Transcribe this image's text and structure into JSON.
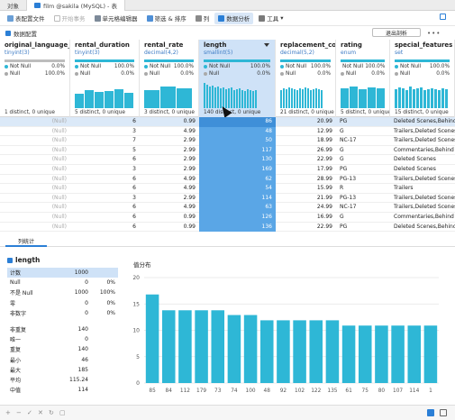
{
  "tabs": [
    {
      "label": "对象"
    },
    {
      "label": "film @sakila (MySQL) - 表"
    }
  ],
  "toolbar": {
    "items": [
      {
        "label": "表配置文件",
        "icon": "table-profile-icon"
      },
      {
        "label": "开始事务",
        "icon": "transaction-icon"
      },
      {
        "label": "单元格编辑器",
        "icon": "cell-editor-icon"
      },
      {
        "label": "筛选 & 排序",
        "icon": "filter-icon"
      },
      {
        "label": "列",
        "icon": "columns-icon"
      },
      {
        "label": "数据分析",
        "icon": "data-analysis-icon"
      },
      {
        "label": "工具",
        "icon": "tools-icon"
      }
    ]
  },
  "subbar": {
    "label": "数据配置",
    "exit_button": "退出剖析"
  },
  "columns": [
    {
      "name": "original_language_id",
      "type": "tinyint(3)",
      "not_null": "Not Null",
      "not_null_pct": "0.0%",
      "null": "Null",
      "null_pct": "100.0%",
      "distinct": "1 distinct, 0 unique"
    },
    {
      "name": "rental_duration",
      "type": "tinyint(3)",
      "not_null": "Not Null",
      "not_null_pct": "100.0%",
      "null": "Null",
      "null_pct": "0.0%",
      "distinct": "5 distinct, 0 unique"
    },
    {
      "name": "rental_rate",
      "type": "decimal(4,2)",
      "not_null": "Not Null",
      "not_null_pct": "100.0%",
      "null": "Null",
      "null_pct": "0.0%",
      "distinct": "3 distinct, 0 unique"
    },
    {
      "name": "length",
      "type": "smallint(5)",
      "not_null": "Not Null",
      "not_null_pct": "100.0%",
      "null": "Null",
      "null_pct": "0.0%",
      "distinct": "140 distinct, 0 unique"
    },
    {
      "name": "replacement_cost",
      "type": "decimal(5,2)",
      "not_null": "Not Null",
      "not_null_pct": "100.0%",
      "null": "Null",
      "null_pct": "0.0%",
      "distinct": "21 distinct, 0 unique"
    },
    {
      "name": "rating",
      "type": "enum",
      "not_null": "Not Null",
      "not_null_pct": "100.0%",
      "null": "Null",
      "null_pct": "0.0%",
      "distinct": "5 distinct, 0 unique"
    },
    {
      "name": "special_features",
      "type": "set",
      "not_null": "Not Null",
      "not_null_pct": "100.0%",
      "null": "Null",
      "null_pct": "0.0%",
      "distinct": "15 distinct, 0 unique"
    }
  ],
  "rows": [
    [
      "(Null)",
      "6",
      "0.99",
      "86",
      "20.99",
      "PG",
      "Deleted Scenes,Behind the Scenes"
    ],
    [
      "(Null)",
      "3",
      "4.99",
      "48",
      "12.99",
      "G",
      "Trailers,Deleted Scenes"
    ],
    [
      "(Null)",
      "7",
      "2.99",
      "50",
      "18.99",
      "NC-17",
      "Trailers,Deleted Scenes"
    ],
    [
      "(Null)",
      "5",
      "2.99",
      "117",
      "26.99",
      "G",
      "Commentaries,Behind the Scenes"
    ],
    [
      "(Null)",
      "6",
      "2.99",
      "130",
      "22.99",
      "G",
      "Deleted Scenes"
    ],
    [
      "(Null)",
      "3",
      "2.99",
      "169",
      "17.99",
      "PG",
      "Deleted Scenes"
    ],
    [
      "(Null)",
      "6",
      "4.99",
      "62",
      "28.99",
      "PG-13",
      "Trailers,Deleted Scenes"
    ],
    [
      "(Null)",
      "6",
      "4.99",
      "54",
      "15.99",
      "R",
      "Trailers"
    ],
    [
      "(Null)",
      "3",
      "2.99",
      "114",
      "21.99",
      "PG-13",
      "Trailers,Deleted Scenes"
    ],
    [
      "(Null)",
      "6",
      "4.99",
      "63",
      "24.99",
      "NC-17",
      "Trailers,Deleted Scenes"
    ],
    [
      "(Null)",
      "6",
      "0.99",
      "126",
      "16.99",
      "G",
      "Commentaries,Behind the Scenes"
    ],
    [
      "(Null)",
      "6",
      "0.99",
      "136",
      "22.99",
      "PG",
      "Deleted Scenes,Behind the Scenes"
    ]
  ],
  "pane": {
    "tab": "列统计",
    "field": "length",
    "chart_title": "值分布"
  },
  "stats": [
    {
      "label": "计数",
      "v1": "1000",
      "v2": "",
      "hl": true
    },
    {
      "label": "Null",
      "v1": "0",
      "v2": "0%"
    },
    {
      "label": "不是 Null",
      "v1": "1000",
      "v2": "100%"
    },
    {
      "label": "零",
      "v1": "0",
      "v2": "0%"
    },
    {
      "label": "非数字",
      "v1": "0",
      "v2": "0%"
    },
    {
      "gap": true
    },
    {
      "label": "非重复",
      "v1": "140",
      "v2": ""
    },
    {
      "label": "唯一",
      "v1": "0",
      "v2": ""
    },
    {
      "label": "重复",
      "v1": "140",
      "v2": ""
    },
    {
      "label": "最小",
      "v1": "46",
      "v2": ""
    },
    {
      "label": "最大",
      "v1": "185",
      "v2": ""
    },
    {
      "label": "平均",
      "v1": "115.24",
      "v2": ""
    },
    {
      "label": "中值",
      "v1": "114",
      "v2": ""
    }
  ],
  "chart_data": {
    "type": "bar",
    "title": "值分布",
    "categories": [
      "85",
      "84",
      "112",
      "179",
      "73",
      "74",
      "100",
      "48",
      "92",
      "102",
      "122",
      "135",
      "61",
      "75",
      "80",
      "107",
      "114",
      "1"
    ],
    "values": [
      16.8,
      13.8,
      13.8,
      13.8,
      13.8,
      12.9,
      12.9,
      11.9,
      11.9,
      11.9,
      11.9,
      11.9,
      10.9,
      10.9,
      10.9,
      10.9,
      10.9,
      10.9
    ],
    "ylim": [
      0,
      20
    ],
    "yticks": [
      0,
      5,
      10,
      15,
      20
    ],
    "color": "#2eb7d6",
    "grid": true
  },
  "colors": {
    "accent": "#2b7fd6",
    "bar": "#2eb7d6",
    "selected_col": "#5aa6e6"
  }
}
